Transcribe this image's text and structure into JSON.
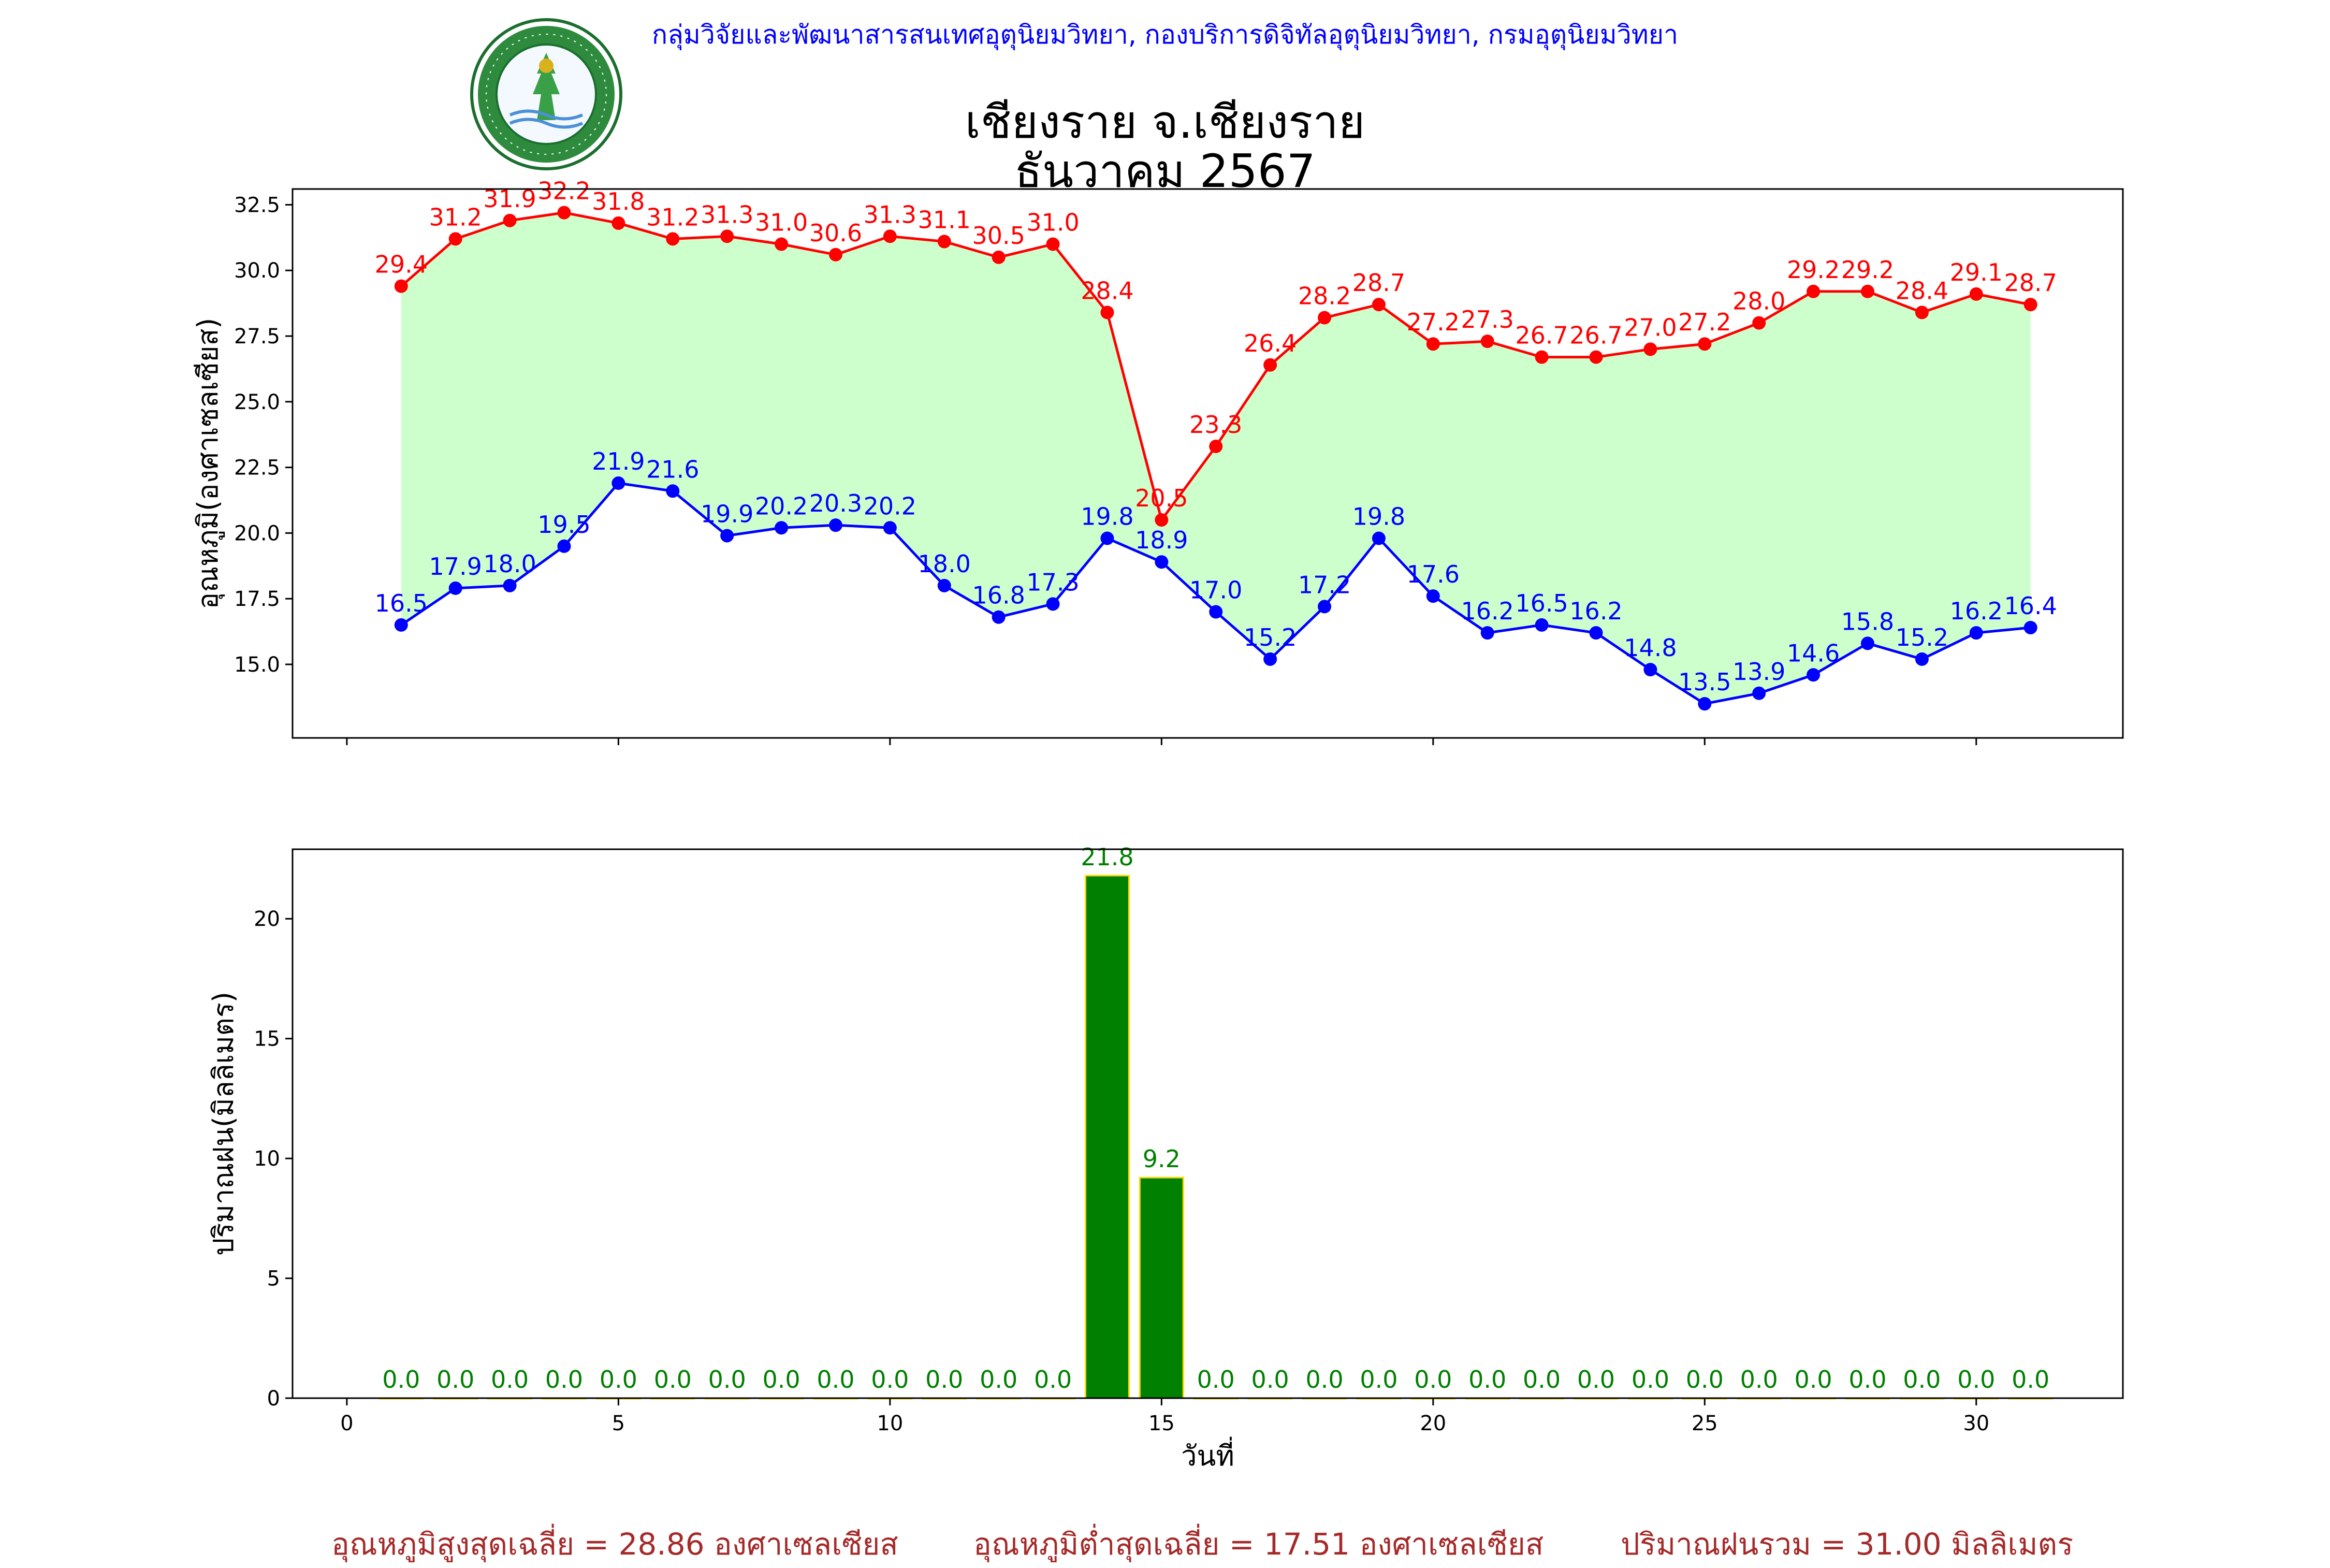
{
  "header": {
    "credit": "กลุ่มวิจัยและพัฒนาสารสนเทศอุตุนิยมวิทยา, กองบริการดิจิทัลอุตุนิยมวิทยา, กรมอุตุนิยมวิทยา",
    "logo_text_top": "กรมอุตุนิยมวิทยา",
    "logo_text_bottom": "METEOROLOGICAL DEPARTMENT"
  },
  "title": {
    "line1": "เชียงราย จ.เชียงราย",
    "line2": "ธันวาคม 2567"
  },
  "colors": {
    "max": "#ff0000",
    "min": "#0000ff",
    "fill": "#ccffcc",
    "rain_bar": "#008000",
    "rain_edge": "#ffd700",
    "rain_label": "#008000",
    "stats": "#a52a2a",
    "credit": "#0000ff"
  },
  "stats": {
    "max_avg": "อุณหภูมิสูงสุดเฉลี่ย = 28.86 องศาเซลเซียส",
    "min_avg": "อุณหภูมิต่ำสุดเฉลี่ย = 17.51 องศาเซลเซียส",
    "rain_total": "ปริมาณฝนรวม = 31.00 มิลลิเมตร"
  },
  "chart_data": [
    {
      "type": "line",
      "ylabel": "อุณหภูมิ(องศาเซลเซียส)",
      "xlabel": "",
      "xlim": [
        -1,
        32.7
      ],
      "ylim": [
        12.2,
        33.1
      ],
      "xticks": [
        0,
        5,
        10,
        15,
        20,
        25,
        30
      ],
      "yticks": [
        15.0,
        17.5,
        20.0,
        22.5,
        25.0,
        27.5,
        30.0,
        32.5
      ],
      "grid": false,
      "fill_between": true,
      "x": [
        1,
        2,
        3,
        4,
        5,
        6,
        7,
        8,
        9,
        10,
        11,
        12,
        13,
        14,
        15,
        16,
        17,
        18,
        19,
        20,
        21,
        22,
        23,
        24,
        25,
        26,
        27,
        28,
        29,
        30,
        31
      ],
      "series": [
        {
          "name": "",
          "color": "#ff0000",
          "values": [
            29.4,
            31.2,
            31.9,
            32.2,
            31.8,
            31.2,
            31.3,
            31.0,
            30.6,
            31.3,
            31.1,
            30.5,
            31.0,
            28.4,
            20.5,
            23.3,
            26.4,
            28.2,
            28.7,
            27.2,
            27.3,
            26.7,
            26.7,
            27.0,
            27.2,
            28.0,
            29.2,
            29.2,
            28.4,
            29.1,
            28.7
          ]
        },
        {
          "name": "",
          "color": "#0000ff",
          "values": [
            16.5,
            17.9,
            18.0,
            19.5,
            21.9,
            21.6,
            19.9,
            20.2,
            20.3,
            20.2,
            18.0,
            16.8,
            17.3,
            19.8,
            18.9,
            17.0,
            15.2,
            17.2,
            19.8,
            17.6,
            16.2,
            16.5,
            16.2,
            14.8,
            13.5,
            13.9,
            14.6,
            15.8,
            15.2,
            16.2,
            16.4
          ]
        }
      ]
    },
    {
      "type": "bar",
      "ylabel": "ปริมาณฝน(มิลลิเมตร)",
      "xlabel": "วันที่",
      "xlim": [
        -1,
        32.7
      ],
      "ylim": [
        0,
        22.9
      ],
      "xticks": [
        0,
        5,
        10,
        15,
        20,
        25,
        30
      ],
      "yticks": [
        0,
        5,
        10,
        15,
        20
      ],
      "grid": false,
      "x": [
        1,
        2,
        3,
        4,
        5,
        6,
        7,
        8,
        9,
        10,
        11,
        12,
        13,
        14,
        15,
        16,
        17,
        18,
        19,
        20,
        21,
        22,
        23,
        24,
        25,
        26,
        27,
        28,
        29,
        30,
        31
      ],
      "values": [
        0.0,
        0.0,
        0.0,
        0.0,
        0.0,
        0.0,
        0.0,
        0.0,
        0.0,
        0.0,
        0.0,
        0.0,
        0.0,
        21.8,
        9.2,
        0.0,
        0.0,
        0.0,
        0.0,
        0.0,
        0.0,
        0.0,
        0.0,
        0.0,
        0.0,
        0.0,
        0.0,
        0.0,
        0.0,
        0.0,
        0.0
      ]
    }
  ]
}
